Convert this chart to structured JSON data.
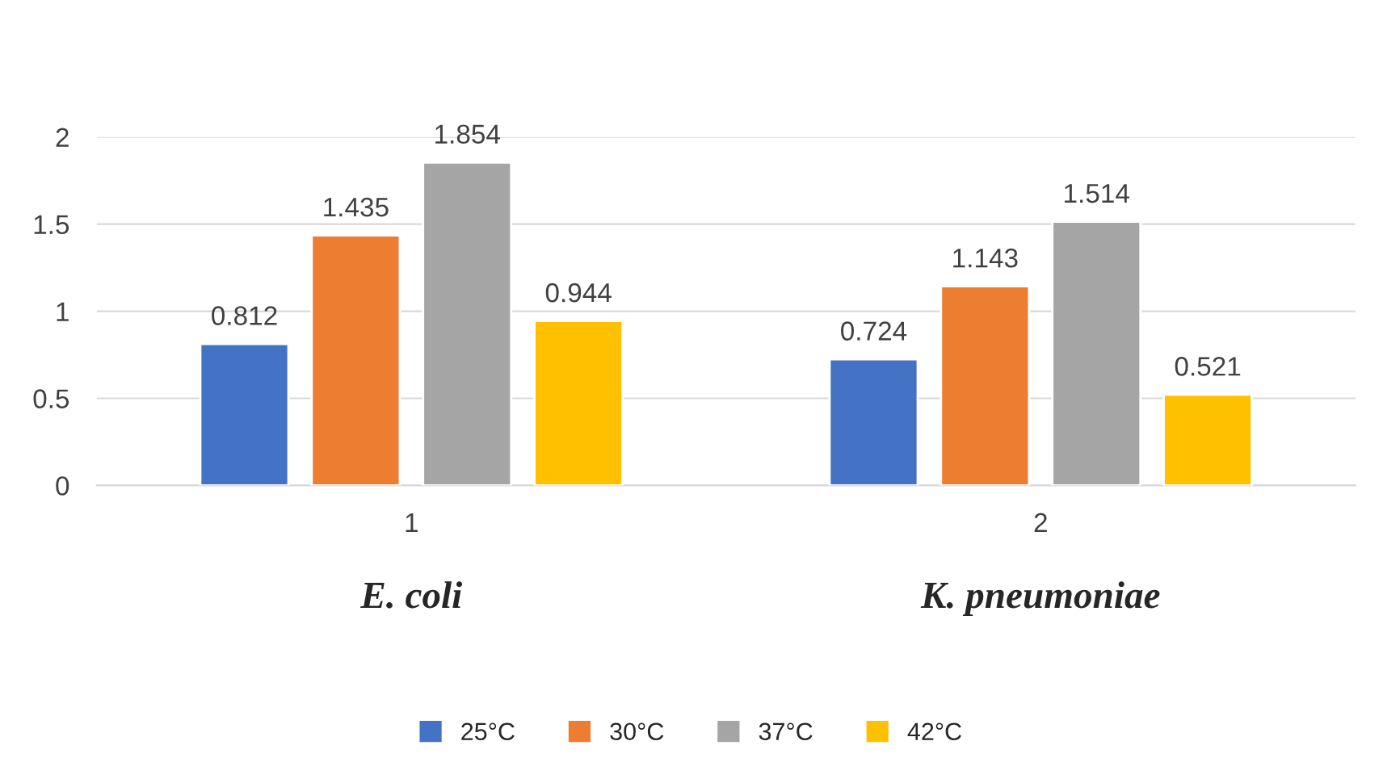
{
  "chart_data": {
    "type": "bar",
    "categories": [
      "1",
      "2"
    ],
    "series": [
      {
        "name": "25°C",
        "color": "#4472c4",
        "values": [
          0.812,
          0.724
        ]
      },
      {
        "name": "30°C",
        "color": "#ed7d31",
        "values": [
          1.435,
          1.143
        ]
      },
      {
        "name": "37°C",
        "color": "#a5a5a5",
        "values": [
          1.854,
          1.514
        ]
      },
      {
        "name": "42°C",
        "color": "#ffc000",
        "values": [
          0.944,
          0.521
        ]
      }
    ],
    "ylim": [
      0,
      2
    ],
    "yticks": [
      0,
      0.5,
      1,
      1.5,
      2
    ],
    "grid": "y",
    "legend": "bottom",
    "data_labels": true,
    "annotations": [
      "E. coli",
      "K. pneumoniae"
    ]
  }
}
